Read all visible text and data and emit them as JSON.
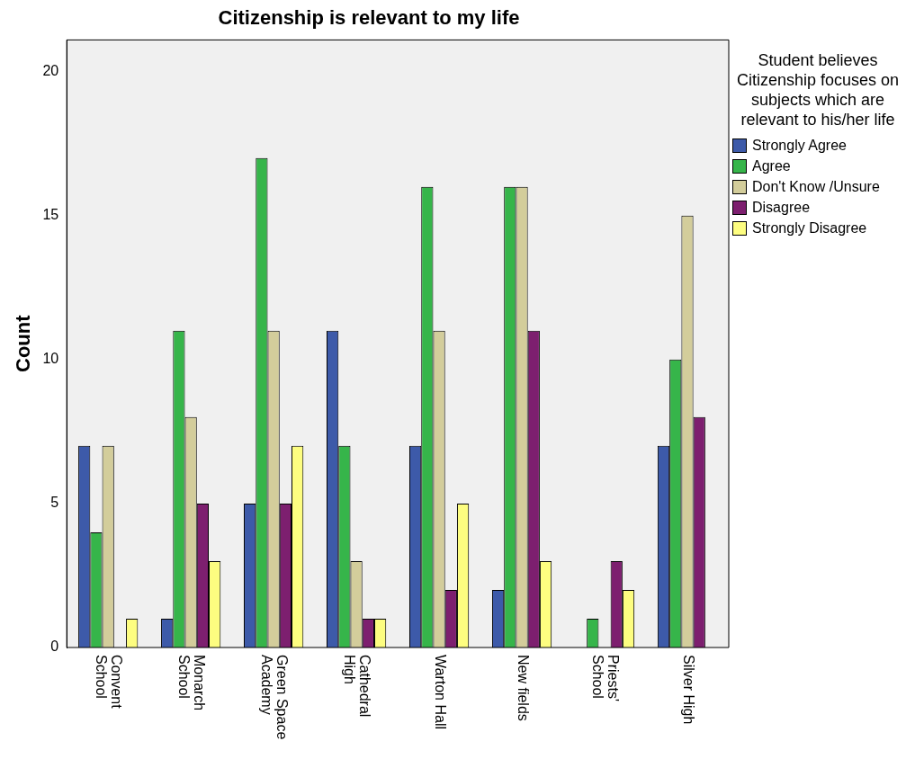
{
  "chart_data": {
    "type": "bar",
    "title": "Citizenship is relevant to my life",
    "ylabel": "Count",
    "legend_title": "Student believes Citizenship focuses on subjects which are relevant to his/her life",
    "legend": "right",
    "grid": false,
    "categories": [
      "Convent School",
      "Monarch School",
      "Green Space Academy",
      "Cathedral High",
      "Warton Hall",
      "New fields",
      "Priests' School",
      "Silver High"
    ],
    "ylim": [
      0,
      21.1
    ],
    "yticks": [
      0,
      5,
      10,
      15,
      20
    ],
    "series": [
      {
        "name": "Strongly Agree",
        "color": "#3d5aa9",
        "values": [
          7,
          1,
          5,
          11,
          7,
          2,
          0,
          7
        ]
      },
      {
        "name": "Agree",
        "color": "#36b54a",
        "values": [
          4,
          11,
          17,
          7,
          16,
          16,
          1,
          10
        ]
      },
      {
        "name": "Don't Know /Unsure",
        "color": "#d3cd9b",
        "values": [
          7,
          8,
          11,
          3,
          11,
          16,
          0,
          15
        ]
      },
      {
        "name": "Disagree",
        "color": "#7d1f6f",
        "values": [
          0,
          5,
          5,
          1,
          2,
          11,
          3,
          8
        ]
      },
      {
        "name": "Strongly Disagree",
        "color": "#fdfd80",
        "values": [
          1,
          3,
          7,
          1,
          5,
          3,
          2,
          0
        ]
      }
    ]
  }
}
